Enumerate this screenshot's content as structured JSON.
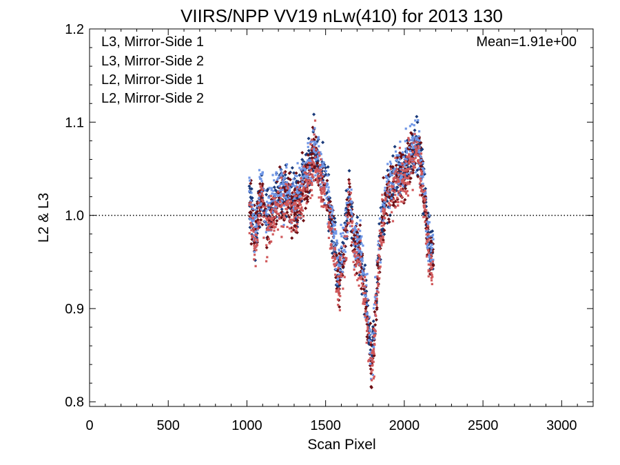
{
  "chart_data": {
    "type": "scatter",
    "title": "VIIRS/NPP VV19 nLw(410) for 2013 130",
    "xlabel": "Scan Pixel",
    "ylabel": "L2 & L3",
    "xlim": [
      0,
      3200
    ],
    "ylim": [
      0.795,
      1.2
    ],
    "xticks": [
      0,
      500,
      1000,
      1500,
      2000,
      2500,
      3000
    ],
    "xtick_labels": [
      "0",
      "500",
      "1000",
      "1500",
      "2000",
      "2500",
      "3000"
    ],
    "yticks": [
      0.8,
      0.9,
      1.0,
      1.1,
      1.2
    ],
    "ytick_labels": [
      "0.8",
      "0.9",
      "1.0",
      "1.1",
      "1.2"
    ],
    "reference_line": {
      "y": 1.0,
      "style": "dotted"
    },
    "annotation": "Mean=1.91e+00",
    "legend_position": "top-left",
    "grid": false,
    "profile_knots": [
      [
        1015,
        1.02
      ],
      [
        1030,
        1.0
      ],
      [
        1045,
        0.975
      ],
      [
        1060,
        0.98
      ],
      [
        1080,
        1.015
      ],
      [
        1100,
        1.02
      ],
      [
        1120,
        0.99
      ],
      [
        1150,
        1.0
      ],
      [
        1200,
        1.015
      ],
      [
        1250,
        1.02
      ],
      [
        1300,
        1.01
      ],
      [
        1350,
        1.025
      ],
      [
        1400,
        1.05
      ],
      [
        1430,
        1.07
      ],
      [
        1460,
        1.05
      ],
      [
        1500,
        1.03
      ],
      [
        1540,
        0.985
      ],
      [
        1580,
        0.93
      ],
      [
        1610,
        0.95
      ],
      [
        1650,
        1.02
      ],
      [
        1680,
        0.97
      ],
      [
        1720,
        0.96
      ],
      [
        1760,
        0.9
      ],
      [
        1790,
        0.84
      ],
      [
        1810,
        0.87
      ],
      [
        1840,
        0.96
      ],
      [
        1880,
        1.02
      ],
      [
        1920,
        1.03
      ],
      [
        1950,
        1.04
      ],
      [
        2000,
        1.045
      ],
      [
        2030,
        1.06
      ],
      [
        2060,
        1.07
      ],
      [
        2080,
        1.075
      ],
      [
        2100,
        1.06
      ],
      [
        2130,
        1.02
      ],
      [
        2150,
        0.97
      ],
      [
        2170,
        0.95
      ],
      [
        2185,
        0.96
      ]
    ],
    "series": [
      {
        "name": "L3, Mirror-Side 1",
        "color": "#1a3a7a"
      },
      {
        "name": "L3, Mirror-Side 2",
        "color": "#6e0f14"
      },
      {
        "name": "L2, Mirror-Side 1",
        "color": "#6f96e6"
      },
      {
        "name": "L2, Mirror-Side 2",
        "color": "#d1595b"
      }
    ]
  }
}
